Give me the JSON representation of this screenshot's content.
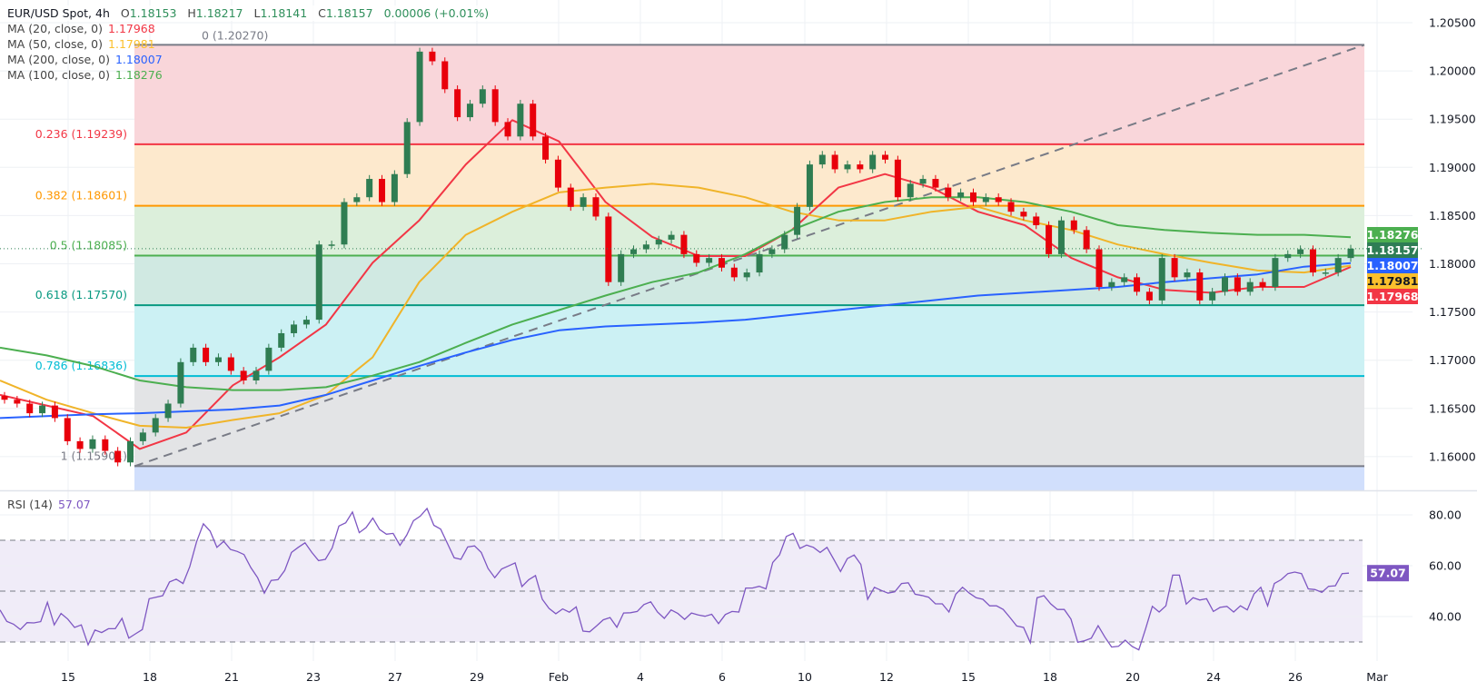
{
  "header": {
    "symbol": "EUR/USD Spot, 4h",
    "open_label": "O",
    "open": "1.18153",
    "high_label": "H",
    "high": "1.18217",
    "low_label": "L",
    "low": "1.18141",
    "close_label": "C",
    "close": "1.18157",
    "change": "0.00006 (+0.01%)"
  },
  "indicators": [
    {
      "label": "MA (20, close, 0)",
      "value": "1.17968",
      "color": "#f23645"
    },
    {
      "label": "MA (50, close, 0)",
      "value": "1.17981",
      "color": "#fbc02d"
    },
    {
      "label": "MA (200, close, 0)",
      "value": "1.18007",
      "color": "#2962ff"
    },
    {
      "label": "MA (100, close, 0)",
      "value": "1.18276",
      "color": "#4caf50"
    }
  ],
  "rsi_panel": {
    "label": "RSI (14)",
    "value": "57.07",
    "color": "#7e57c2"
  },
  "chart_data": [
    {
      "type": "candlestick",
      "title": "EUR/USD Spot, 4h",
      "ylim": [
        1.1575,
        1.2075
      ],
      "y_ticks": [
        "1.20500",
        "1.20000",
        "1.19500",
        "1.19000",
        "1.18500",
        "1.18000",
        "1.17500",
        "1.17000",
        "1.16500",
        "1.16000"
      ],
      "x_ticks": [
        "15",
        "18",
        "21",
        "23",
        "27",
        "29",
        "Feb",
        "4",
        "6",
        "10",
        "12",
        "15",
        "18",
        "20",
        "24",
        "26",
        "Mar"
      ],
      "grid": true,
      "colors": {
        "up": "#2f7d52",
        "down": "#e8000b"
      },
      "closes": [
        1.1659,
        1.1655,
        1.1645,
        1.1653,
        1.164,
        1.1616,
        1.1608,
        1.1618,
        1.1606,
        1.1594,
        1.1616,
        1.1625,
        1.164,
        1.1655,
        1.1698,
        1.1713,
        1.1698,
        1.1703,
        1.1689,
        1.1679,
        1.1689,
        1.1713,
        1.1728,
        1.1737,
        1.1742,
        1.182,
        1.182,
        1.1864,
        1.1869,
        1.1888,
        1.1864,
        1.1893,
        1.1947,
        1.202,
        1.201,
        1.1981,
        1.1952,
        1.1966,
        1.1981,
        1.1947,
        1.1932,
        1.1966,
        1.1932,
        1.1908,
        1.1879,
        1.1859,
        1.1869,
        1.1849,
        1.1781,
        1.181,
        1.1815,
        1.182,
        1.1825,
        1.183,
        1.181,
        1.1801,
        1.1806,
        1.1796,
        1.1786,
        1.1791,
        1.181,
        1.1815,
        1.183,
        1.1859,
        1.1903,
        1.1913,
        1.1898,
        1.1903,
        1.1898,
        1.1913,
        1.1908,
        1.1869,
        1.1883,
        1.1888,
        1.1879,
        1.1869,
        1.1874,
        1.1864,
        1.1869,
        1.1864,
        1.1854,
        1.1849,
        1.184,
        1.181,
        1.1845,
        1.1835,
        1.1815,
        1.1776,
        1.1781,
        1.1786,
        1.1771,
        1.1762,
        1.1806,
        1.1786,
        1.1791,
        1.1762,
        1.1771,
        1.1786,
        1.1771,
        1.1781,
        1.1776,
        1.1806,
        1.181,
        1.1815,
        1.1791,
        1.1791,
        1.1806,
        1.18157
      ],
      "moving_averages": [
        {
          "name": "MA (20, close, 0)",
          "color": "#f23645",
          "values": [
            1.1664,
            1.1653,
            1.1642,
            1.1608,
            1.1625,
            1.1674,
            1.1703,
            1.1737,
            1.1801,
            1.1845,
            1.1903,
            1.1949,
            1.1927,
            1.1864,
            1.1828,
            1.1808,
            1.1808,
            1.1835,
            1.1879,
            1.1893,
            1.1879,
            1.1854,
            1.184,
            1.1806,
            1.1786,
            1.1773,
            1.177,
            1.1776,
            1.1776,
            1.17968
          ]
        },
        {
          "name": "MA (50, close, 0)",
          "color": "#f0b429",
          "values": [
            1.1679,
            1.1659,
            1.1645,
            1.1632,
            1.163,
            1.1638,
            1.1645,
            1.1664,
            1.1703,
            1.1781,
            1.183,
            1.1854,
            1.1874,
            1.1879,
            1.1883,
            1.1879,
            1.1869,
            1.1854,
            1.1845,
            1.1845,
            1.1854,
            1.1859,
            1.1845,
            1.1835,
            1.182,
            1.181,
            1.1801,
            1.1793,
            1.1791,
            1.17981
          ]
        },
        {
          "name": "MA (100, close, 0)",
          "color": "#4caf50",
          "values": [
            1.1713,
            1.1705,
            1.1694,
            1.1679,
            1.1672,
            1.1669,
            1.1669,
            1.1672,
            1.1684,
            1.1698,
            1.1718,
            1.1737,
            1.1752,
            1.1767,
            1.1781,
            1.1791,
            1.181,
            1.1835,
            1.1854,
            1.1864,
            1.1869,
            1.1869,
            1.1864,
            1.1854,
            1.184,
            1.1835,
            1.1832,
            1.183,
            1.183,
            1.18276
          ]
        },
        {
          "name": "MA (200, close, 0)",
          "color": "#2962ff",
          "values": [
            1.164,
            1.1642,
            1.1644,
            1.1645,
            1.1647,
            1.1649,
            1.1653,
            1.1664,
            1.1679,
            1.1694,
            1.1708,
            1.1721,
            1.1731,
            1.1735,
            1.1737,
            1.1739,
            1.1742,
            1.1747,
            1.1752,
            1.1757,
            1.1762,
            1.1767,
            1.177,
            1.1773,
            1.1776,
            1.1781,
            1.1785,
            1.1789,
            1.1797,
            1.18007
          ]
        }
      ],
      "fibonacci": [
        {
          "ratio": "0",
          "price": "1.20270",
          "label": "0 (1.20270)",
          "line": "#787b86",
          "fill": "#f9d6da"
        },
        {
          "ratio": "0.236",
          "price": "1.19239",
          "label": "0.236 (1.19239)",
          "line": "#f23645",
          "fill": "#fde9cd"
        },
        {
          "ratio": "0.382",
          "price": "1.18601",
          "label": "0.382 (1.18601)",
          "line": "#ff9800",
          "fill": "#dcefdb"
        },
        {
          "ratio": "0.5",
          "price": "1.18085",
          "label": "0.5 (1.18085)",
          "line": "#4caf50",
          "fill": "#d0e9e2"
        },
        {
          "ratio": "0.618",
          "price": "1.17570",
          "label": "0.618 (1.17570)",
          "line": "#089981",
          "fill": "#ccf1f4"
        },
        {
          "ratio": "0.786",
          "price": "1.16836",
          "label": "0.786 (1.16836)",
          "line": "#00bcd4",
          "fill": "#e3e4e6"
        },
        {
          "ratio": "1",
          "price": "1.15901",
          "label": "1 (1.15901)",
          "line": "#787b86",
          "fill": "#d1dffc"
        }
      ],
      "price_tags": [
        {
          "value": "1.18276",
          "color": "#4caf50",
          "text": "#ffffff"
        },
        {
          "value": "1.18157",
          "color": "#2e7d55",
          "text": "#ffffff"
        },
        {
          "value": "1.18007",
          "color": "#2962ff",
          "text": "#ffffff"
        },
        {
          "value": "1.17981",
          "color": "#fbc02d",
          "text": "#131722"
        },
        {
          "value": "1.17968",
          "color": "#f23645",
          "text": "#ffffff"
        }
      ]
    },
    {
      "type": "line",
      "title": "RSI (14)",
      "ylim": [
        20,
        90
      ],
      "y_ticks": [
        "80.00",
        "60.00",
        "40.00"
      ],
      "bands": [
        30,
        50,
        70
      ],
      "color": "#7e57c2",
      "current": "57.07",
      "values": [
        42.6,
        38.1,
        37.0,
        34.9,
        37.6,
        37.5,
        38.0,
        45.6,
        36.7,
        41.2,
        39.0,
        35.7,
        36.7,
        28.9,
        34.7,
        33.7,
        35.2,
        35.2,
        39.3,
        31.5,
        33.2,
        34.9,
        47.0,
        47.6,
        48.2,
        53.6,
        54.7,
        53.0,
        59.6,
        69.4,
        76.5,
        73.6,
        67.2,
        69.6,
        66.4,
        65.6,
        64.4,
        59.3,
        55.3,
        49.2,
        54.2,
        54.5,
        58.1,
        65.2,
        67.2,
        69.0,
        65.2,
        62.0,
        62.5,
        67.0,
        75.6,
        76.9,
        81.1,
        73.0,
        75.0,
        78.7,
        74.2,
        72.4,
        72.7,
        68.0,
        72.0,
        77.7,
        79.5,
        82.5,
        75.9,
        74.4,
        68.8,
        63.1,
        62.5,
        67.4,
        67.8,
        65.2,
        58.9,
        55.3,
        58.7,
        59.9,
        61.1,
        51.8,
        54.5,
        56.1,
        46.8,
        43.2,
        41.1,
        43.0,
        41.7,
        43.8,
        34.3,
        34.0,
        36.3,
        38.7,
        39.6,
        35.8,
        41.4,
        41.5,
        42.0,
        44.7,
        45.8,
        41.8,
        39.3,
        42.6,
        41.2,
        38.9,
        41.4,
        40.6,
        40.1,
        40.9,
        37.2,
        40.8,
        42.0,
        41.8,
        51.2,
        51.2,
        51.9,
        50.9,
        61.3,
        64.3,
        71.5,
        72.7,
        66.8,
        68.1,
        67.2,
        65.2,
        67.2,
        62.5,
        57.7,
        62.8,
        64.2,
        60.5,
        46.8,
        51.5,
        50.3,
        49.2,
        49.7,
        53.0,
        53.3,
        48.8,
        48.3,
        47.6,
        45.0,
        45.0,
        41.8,
        48.8,
        51.5,
        49.2,
        47.4,
        46.8,
        44.2,
        44.2,
        42.8,
        39.6,
        36.3,
        35.7,
        29.7,
        47.4,
        48.2,
        45.0,
        42.8,
        42.8,
        39.0,
        29.9,
        30.5,
        31.5,
        36.4,
        31.9,
        28.0,
        28.3,
        30.7,
        28.3,
        26.9,
        35.1,
        44.0,
        41.8,
        44.2,
        56.3,
        56.3,
        44.9,
        47.4,
        46.5,
        47.0,
        42.0,
        43.6,
        44.0,
        41.8,
        44.2,
        42.6,
        48.9,
        51.5,
        44.2,
        53.0,
        54.5,
        56.9,
        57.5,
        56.9,
        50.9,
        50.6,
        49.5,
        51.9,
        52.1,
        56.9,
        57.07
      ]
    }
  ]
}
